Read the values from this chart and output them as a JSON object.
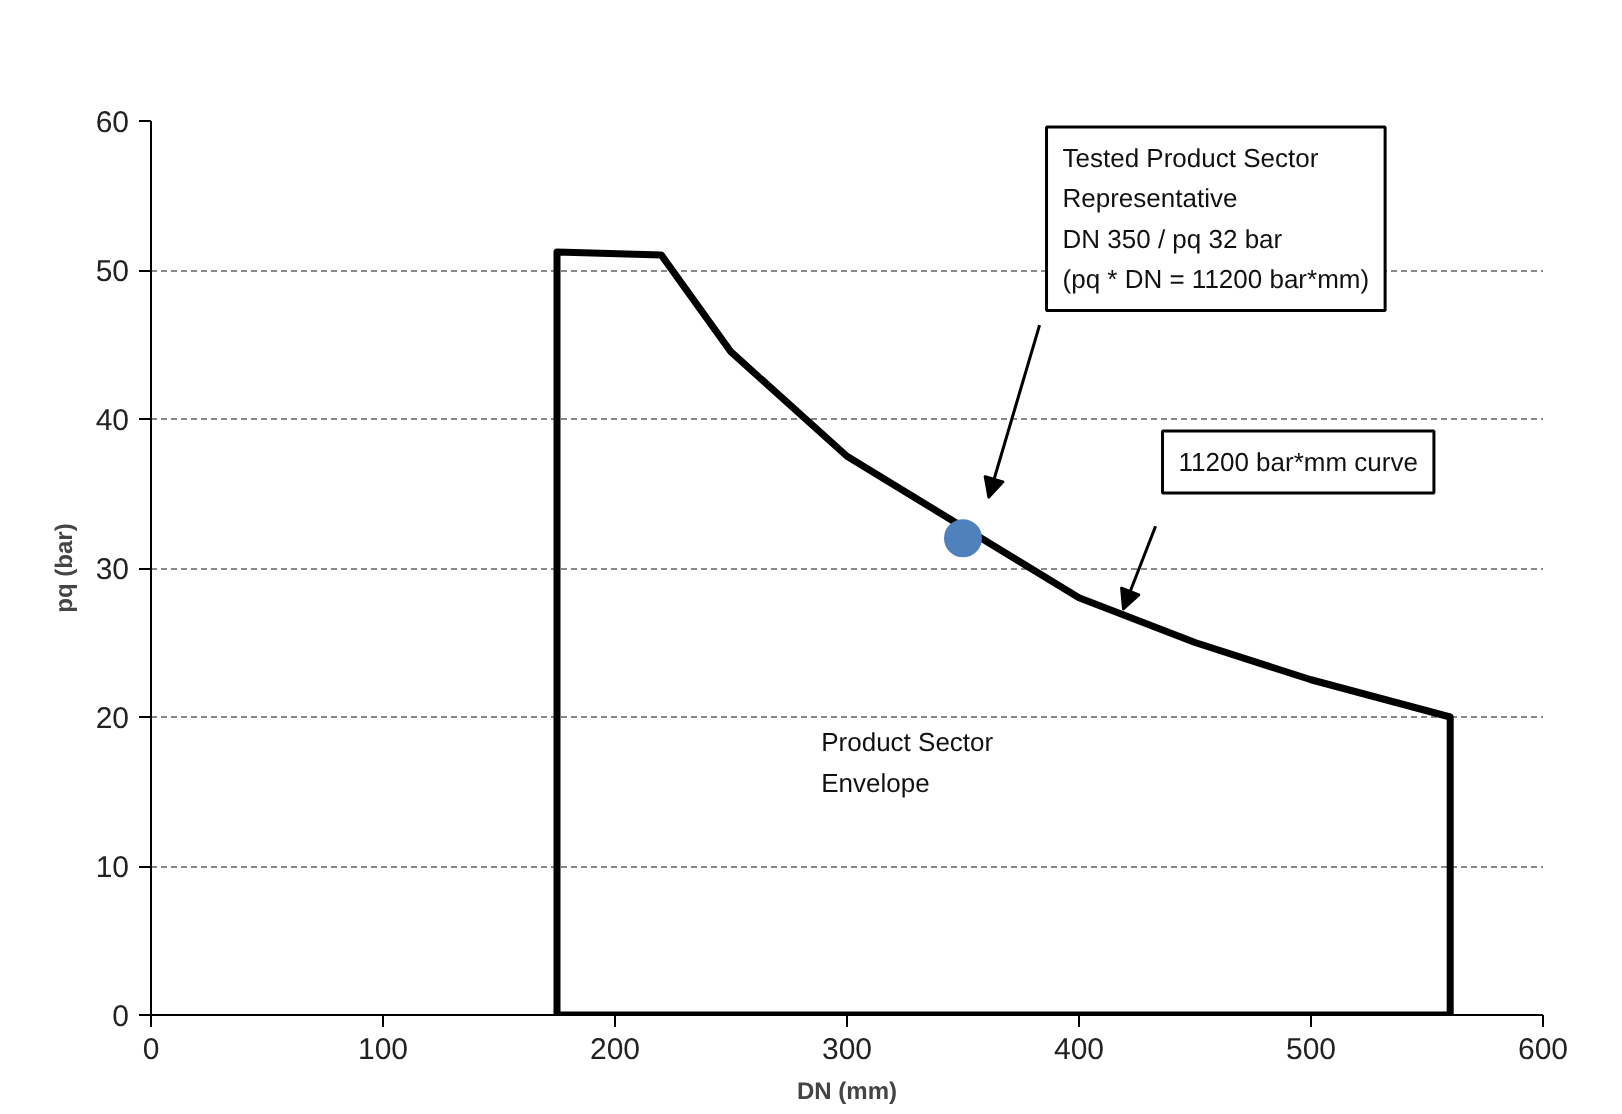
{
  "chart_data": {
    "type": "line",
    "xlabel": "DN (mm)",
    "ylabel": "pq (bar)",
    "xlim": [
      0,
      600
    ],
    "xticks": [
      0,
      100,
      200,
      300,
      400,
      500,
      600
    ],
    "ylim": [
      0,
      60
    ],
    "yticks": [
      0,
      10,
      20,
      30,
      40,
      50,
      60
    ],
    "grid": "y",
    "series": [
      {
        "color": "#000000",
        "x": [
          175,
          175,
          220,
          250,
          300,
          400,
          450,
          500,
          560,
          560
        ],
        "values": [
          0,
          51.2,
          51,
          44.5,
          37.5,
          28,
          25,
          22.5,
          20,
          0
        ]
      },
      {
        "color": "#000000",
        "x": [
          175,
          560
        ],
        "values": [
          0,
          0
        ]
      },
      {
        "type": "scatter",
        "color": "#4f81bd",
        "x": [
          350
        ],
        "values": [
          32
        ]
      }
    ],
    "annotations": [
      "Tested Product Sector\nRepresentative\nDN 350 / pq 32 bar\n(pq * DN = 11200 bar*mm)",
      "11200 bar*mm curve",
      "Product Sector\nEnvelope"
    ]
  }
}
